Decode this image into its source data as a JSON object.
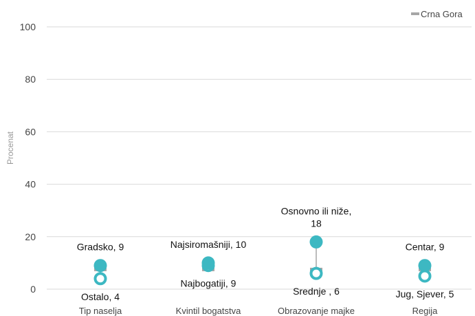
{
  "chart_data": {
    "type": "dumbbell",
    "ylabel": "Procenat",
    "ylim": [
      0,
      100
    ],
    "yticks": [
      0,
      20,
      40,
      60,
      80,
      100
    ],
    "grid": true,
    "legend": {
      "position": "top-right",
      "label": "Crna Gora"
    },
    "national_value": 7.5,
    "categories": [
      "Tip naselja",
      "Kvintil bogatstva",
      "Obrazovanje majke",
      "Regija"
    ],
    "groups": [
      {
        "category": "Tip naselja",
        "high": {
          "label": "Gradsko, 9",
          "value": 9
        },
        "low": {
          "label": "Ostalo, 4",
          "value": 4
        }
      },
      {
        "category": "Kvintil bogatstva",
        "high": {
          "label": "Najsiromašniji, 10",
          "value": 10
        },
        "low": {
          "label": "Najbogatiji, 9",
          "value": 9
        }
      },
      {
        "category": "Obrazovanje majke",
        "high": {
          "label": "Osnovno ili niže,\n18",
          "value": 18
        },
        "low": {
          "label": "Srednje , 6",
          "value": 6
        }
      },
      {
        "category": "Regija",
        "high": {
          "label": "Centar, 9",
          "value": 9
        },
        "low": {
          "label": "Jug, Sjever, 5",
          "value": 5
        }
      }
    ],
    "colors": {
      "marker": "#3db8c2",
      "national": "#a6a6a6",
      "grid": "#d9d9d9",
      "connector": "#a6a6a6"
    }
  }
}
